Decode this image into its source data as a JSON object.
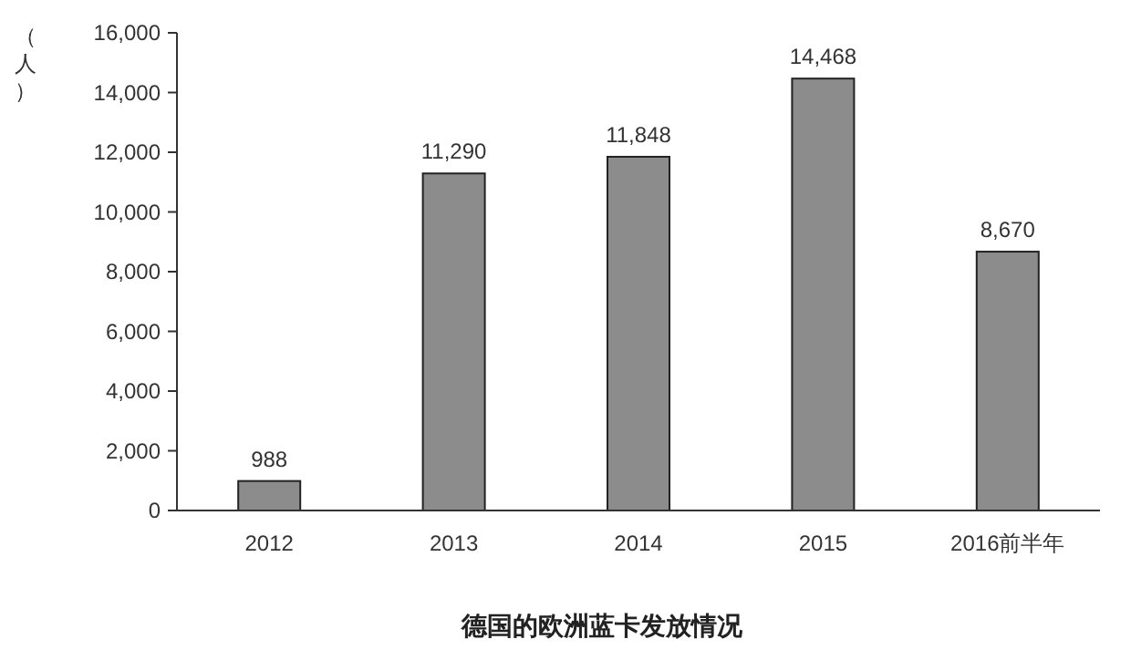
{
  "chart_data": {
    "type": "bar",
    "title": "德国的欧洲蓝卡发放情况",
    "ylabel": "（人）",
    "categories": [
      "2012",
      "2013",
      "2014",
      "2015",
      "2016前半年"
    ],
    "values": [
      988,
      11290,
      11848,
      14468,
      8670
    ],
    "value_labels": [
      "988",
      "11,290",
      "11,848",
      "14,468",
      "8,670"
    ],
    "color": "#8c8c8c",
    "grid": false,
    "ylim": [
      0,
      16000
    ],
    "yticks": [
      {
        "value": 0,
        "label": "0"
      },
      {
        "value": 2000,
        "label": "2,000"
      },
      {
        "value": 4000,
        "label": "4,000"
      },
      {
        "value": 6000,
        "label": "6,000"
      },
      {
        "value": 8000,
        "label": "8,000"
      },
      {
        "value": 10000,
        "label": "10,000"
      },
      {
        "value": 12000,
        "label": "12,000"
      },
      {
        "value": 14000,
        "label": "14,000"
      },
      {
        "value": 16000,
        "label": "16,000"
      }
    ]
  }
}
